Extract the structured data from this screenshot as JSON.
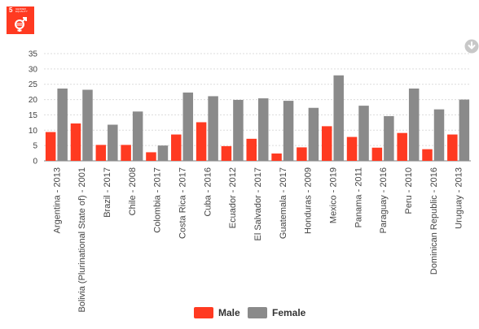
{
  "header": {
    "badge_number": "5",
    "badge_title": "GENDER EQUALITY",
    "badge_icon": "gender-equality-icon",
    "badge_color": "#ff3a21"
  },
  "toolbar": {
    "download_icon": "download-icon"
  },
  "chart_data": {
    "type": "bar",
    "categories": [
      "Argentina - 2013",
      "Bolivia (Plurinational State of) - 2001",
      "Brazil - 2017",
      "Chile - 2008",
      "Colombia - 2017",
      "Costa Rica - 2017",
      "Cuba - 2016",
      "Ecuador - 2012",
      "El Salvador - 2017",
      "Guatemala - 2017",
      "Honduras - 2009",
      "Mexico - 2019",
      "Panama - 2011",
      "Paraguay - 2016",
      "Peru - 2010",
      "Dominican Republic - 2016",
      "Uruguay - 2013"
    ],
    "series": [
      {
        "name": "Male",
        "color": "#ff3a21",
        "values": [
          9.4,
          12.2,
          5.2,
          5.2,
          2.8,
          8.6,
          12.6,
          4.8,
          7.2,
          2.4,
          4.4,
          11.3,
          7.8,
          4.3,
          9.1,
          3.8,
          8.6
        ]
      },
      {
        "name": "Female",
        "color": "#8a8a8a",
        "values": [
          23.6,
          23.2,
          11.8,
          16.1,
          5.0,
          22.3,
          21.1,
          19.9,
          20.4,
          19.6,
          17.3,
          27.9,
          18.0,
          14.6,
          23.6,
          16.8,
          20.0
        ]
      }
    ],
    "yticks": [
      "0",
      "5",
      "10",
      "15",
      "20",
      "25",
      "30",
      "35"
    ],
    "ylim": [
      0,
      35
    ],
    "grid": true,
    "legend_position": "bottom-center"
  }
}
